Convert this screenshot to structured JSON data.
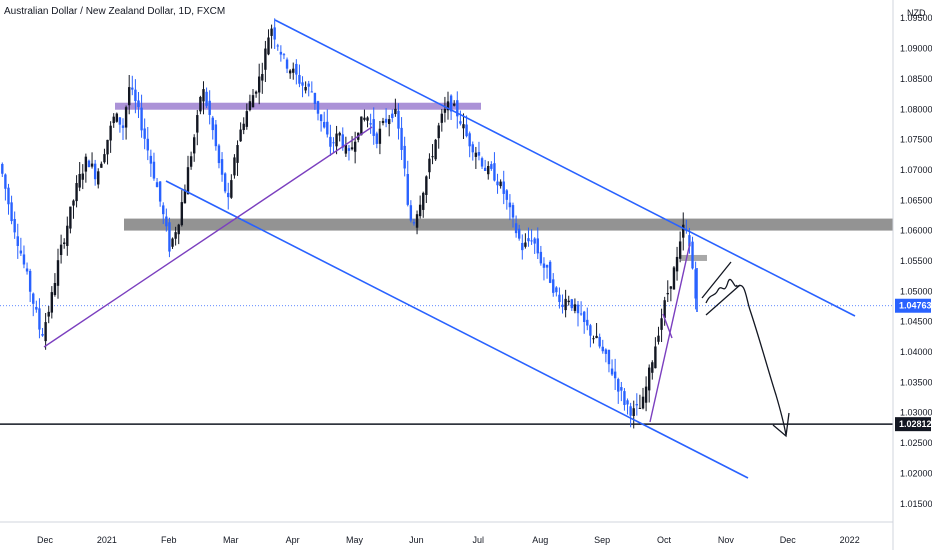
{
  "header": {
    "title": "Australian Dollar / New Zealand Dollar, 1D, FXCM",
    "currency": "NZD"
  },
  "chart_data": {
    "type": "candlestick",
    "yaxis": {
      "ylim": [
        1.012,
        1.098
      ],
      "ticks": [
        "1.01500",
        "1.02000",
        "1.02500",
        "1.03000",
        "1.03500",
        "1.04000",
        "1.04500",
        "1.05000",
        "1.05500",
        "1.06000",
        "1.06500",
        "1.07000",
        "1.07500",
        "1.08000",
        "1.08500",
        "1.09000",
        "1.09500"
      ]
    },
    "xaxis": {
      "ticks": [
        "Dec",
        "2021",
        "Feb",
        "Mar",
        "Apr",
        "May",
        "Jun",
        "Jul",
        "Aug",
        "Sep",
        "Oct",
        "Nov",
        "Dec",
        "2022"
      ]
    },
    "price_labels": [
      {
        "value": "1.04763",
        "color": "#2962ff",
        "price": 1.04763
      },
      {
        "value": "1.02812",
        "color": "#131722",
        "price": 1.02812
      }
    ],
    "series": [
      {
        "kind": "ohlc-path",
        "path": [
          [
            0,
            1.071
          ],
          [
            4,
            1.064
          ],
          [
            8,
            1.058
          ],
          [
            12,
            1.052
          ],
          [
            16,
            1.046
          ],
          [
            18,
            1.0425
          ],
          [
            22,
            1.048
          ],
          [
            26,
            1.056
          ],
          [
            30,
            1.062
          ],
          [
            34,
            1.068
          ],
          [
            38,
            1.072
          ],
          [
            42,
            1.069
          ],
          [
            46,
            1.074
          ],
          [
            50,
            1.079
          ],
          [
            54,
            1.077
          ],
          [
            56,
            1.084
          ],
          [
            60,
            1.08
          ],
          [
            64,
            1.074
          ],
          [
            68,
            1.068
          ],
          [
            72,
            1.061
          ],
          [
            74,
            1.057
          ],
          [
            78,
            1.062
          ],
          [
            82,
            1.07
          ],
          [
            86,
            1.078
          ],
          [
            88,
            1.084
          ],
          [
            92,
            1.078
          ],
          [
            96,
            1.07
          ],
          [
            100,
            1.064
          ],
          [
            102,
            1.072
          ],
          [
            106,
            1.078
          ],
          [
            110,
            1.082
          ],
          [
            114,
            1.086
          ],
          [
            118,
            1.094
          ],
          [
            120,
            1.092
          ],
          [
            124,
            1.088
          ],
          [
            128,
            1.086
          ],
          [
            132,
            1.084
          ],
          [
            136,
            1.083
          ],
          [
            140,
            1.078
          ],
          [
            144,
            1.074
          ],
          [
            148,
            1.076
          ],
          [
            152,
            1.072
          ],
          [
            156,
            1.077
          ],
          [
            160,
            1.079
          ],
          [
            164,
            1.075
          ],
          [
            168,
            1.078
          ],
          [
            172,
            1.08
          ],
          [
            176,
            1.072
          ],
          [
            178,
            1.063
          ],
          [
            180,
            1.061
          ],
          [
            184,
            1.066
          ],
          [
            188,
            1.072
          ],
          [
            192,
            1.078
          ],
          [
            196,
            1.081
          ],
          [
            200,
            1.079
          ],
          [
            204,
            1.075
          ],
          [
            208,
            1.073
          ],
          [
            212,
            1.07
          ],
          [
            216,
            1.069
          ],
          [
            220,
            1.066
          ],
          [
            224,
            1.061
          ],
          [
            228,
            1.057
          ],
          [
            232,
            1.059
          ],
          [
            236,
            1.055
          ],
          [
            240,
            1.052
          ],
          [
            244,
            1.048
          ],
          [
            248,
            1.049
          ],
          [
            252,
            1.046
          ],
          [
            256,
            1.044
          ],
          [
            260,
            1.042
          ],
          [
            264,
            1.039
          ],
          [
            268,
            1.036
          ],
          [
            272,
            1.032
          ],
          [
            276,
            1.03
          ],
          [
            280,
            1.031
          ],
          [
            284,
            1.038
          ],
          [
            288,
            1.045
          ],
          [
            292,
            1.051
          ],
          [
            296,
            1.056
          ],
          [
            298,
            1.0605
          ],
          [
            300,
            1.059
          ],
          [
            302,
            1.054
          ],
          [
            304,
            1.048
          ]
        ],
        "day_start": 0,
        "day_end": 304
      }
    ],
    "annotations": [
      {
        "kind": "resistance-zone",
        "color": "#9c7fd0",
        "y": 1.0805,
        "x0": 29,
        "x1": 210
      },
      {
        "kind": "support-zone",
        "color": "#808080",
        "y": 1.061,
        "x0": 22,
        "x1": 330
      },
      {
        "kind": "small-zone",
        "color": "#999999",
        "y": 1.0555,
        "x0": 296,
        "x1": 306
      },
      {
        "kind": "trendline-upper",
        "color": "#2962ff",
        "points": [
          [
            116,
            1.0955
          ],
          [
            342,
            1.0475
          ]
        ]
      },
      {
        "kind": "trendline-lower",
        "color": "#2962ff",
        "points": [
          [
            75,
            1.07
          ],
          [
            326,
            1.022
          ]
        ]
      },
      {
        "kind": "trendline-purple",
        "color": "#7b3fbf",
        "points": [
          [
            18,
            1.042
          ],
          [
            170,
            1.0795
          ]
        ]
      },
      {
        "kind": "trendline-purple2",
        "color": "#7b3fbf",
        "points": [
          [
            284,
            1.043
          ],
          [
            298,
            1.0575
          ]
        ]
      },
      {
        "kind": "level",
        "color": "#131722",
        "y": 1.02812
      },
      {
        "kind": "dotted-level",
        "color": "#2962ff",
        "y": 1.04763
      }
    ]
  }
}
